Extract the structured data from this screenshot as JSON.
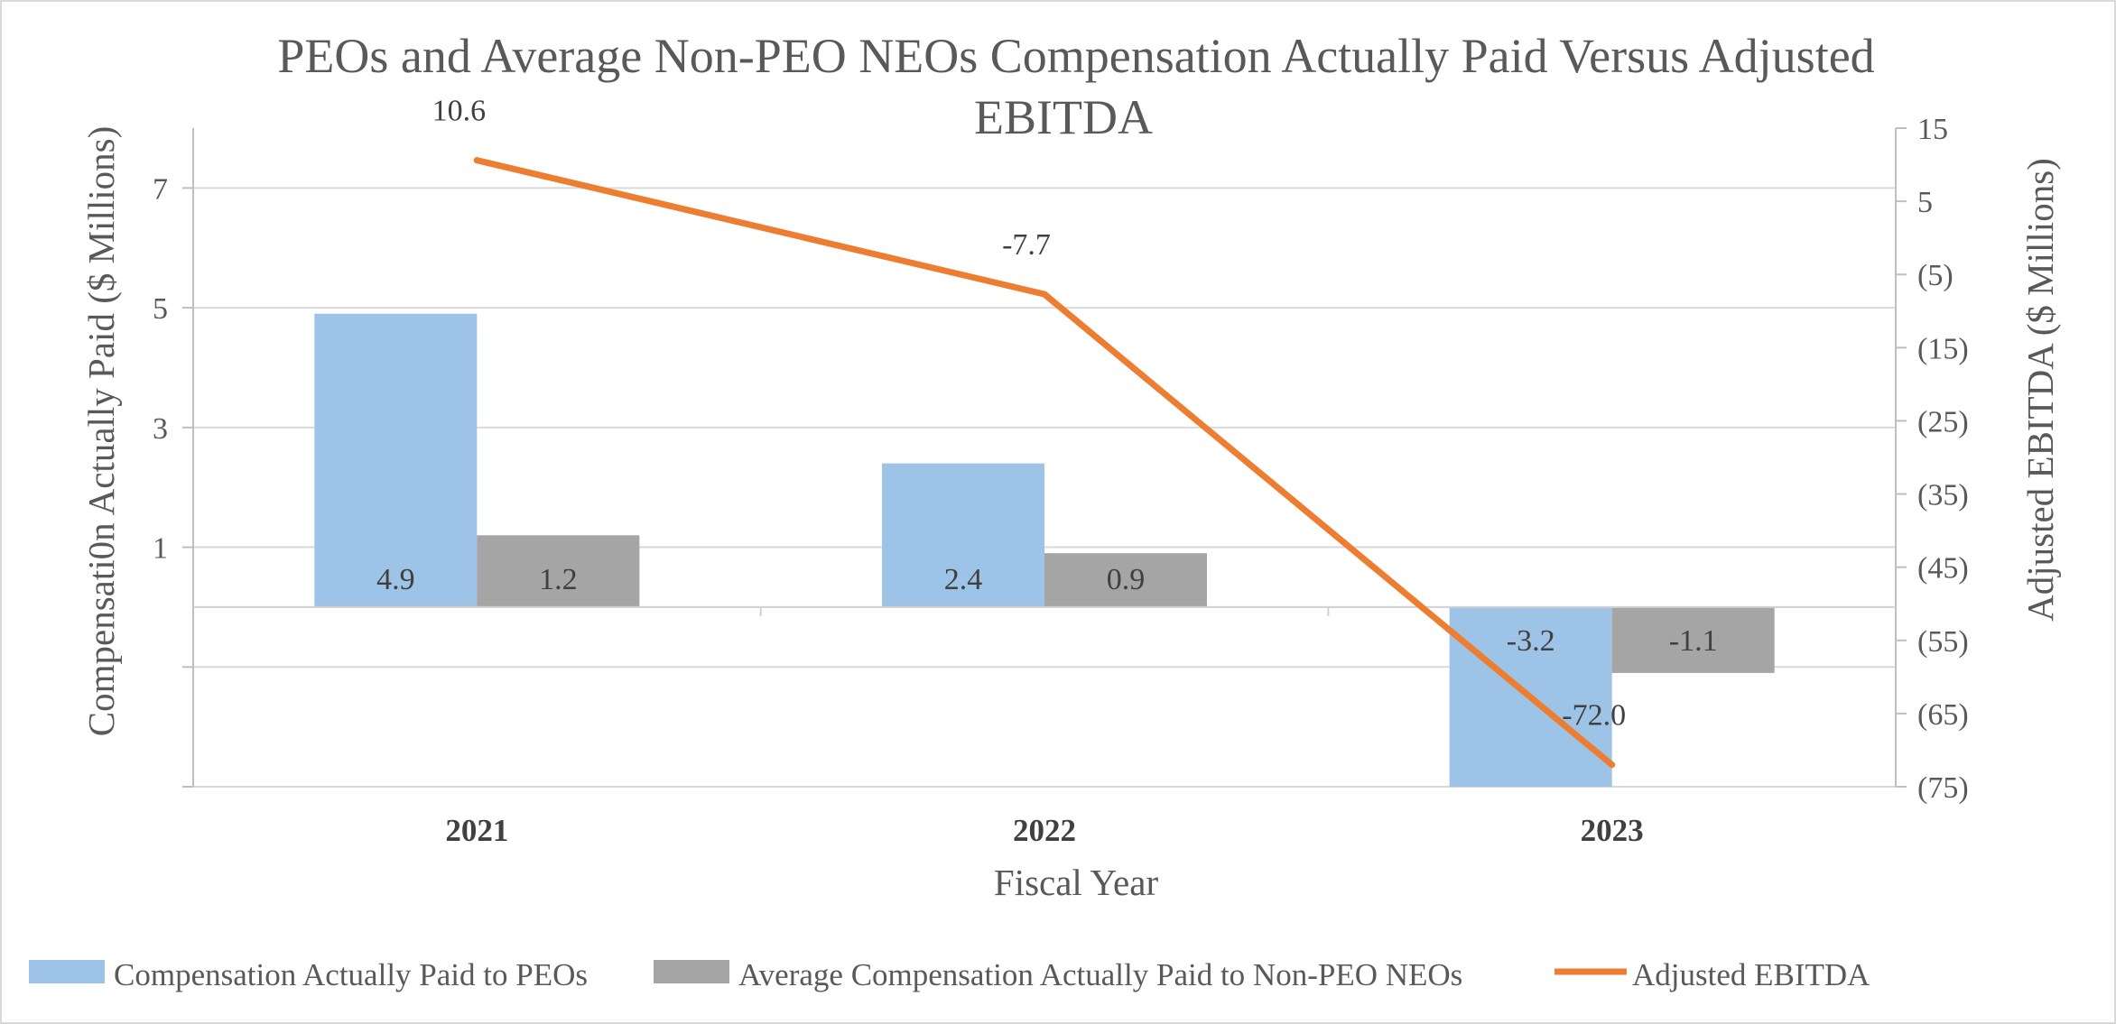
{
  "chart_data": {
    "type": "bar",
    "title": "PEOs and Average Non-PEO NEOs Compensation Actually Paid Versus Adjusted EBITDA",
    "title_lines": [
      "PEOs and Average Non-PEO NEOs Compensation Actually Paid Versus Adjusted",
      "EBITDA"
    ],
    "xlabel": "Fiscal Year",
    "ylabel": "Compensati0n Actually Paid ($ Millions)",
    "y2label": "Adjusted EBITDA ($ Millions)",
    "categories": [
      "2021",
      "2022",
      "2023"
    ],
    "ylim": [
      -3,
      8
    ],
    "yticks": [
      7,
      5,
      3,
      1
    ],
    "y2lim": [
      -75,
      15
    ],
    "y2ticks": [
      "15",
      "5",
      "(5)",
      "(15)",
      "(25)",
      "(35)",
      "(45)",
      "(55)",
      "(65)",
      "(75)"
    ],
    "y2tick_values": [
      15,
      5,
      -5,
      -15,
      -25,
      -35,
      -45,
      -55,
      -65,
      -75
    ],
    "grid": true,
    "legend_position": "bottom",
    "series": [
      {
        "name": "Compensation Actually Paid to PEOs",
        "kind": "bar",
        "axis": "left",
        "color": "#9dc3e6",
        "values": [
          4.9,
          2.4,
          -3.2
        ],
        "labels": [
          "4.9",
          "2.4",
          "-3.2"
        ]
      },
      {
        "name": "Average Compensation Actually Paid to Non-PEO NEOs",
        "kind": "bar",
        "axis": "left",
        "color": "#a5a5a5",
        "values": [
          1.2,
          0.9,
          -1.1
        ],
        "labels": [
          "1.2",
          "0.9",
          "-1.1"
        ]
      },
      {
        "name": "Adjusted EBITDA",
        "kind": "line",
        "axis": "right",
        "color": "#ed7d31",
        "values": [
          10.6,
          -7.7,
          -72.0
        ],
        "labels": [
          "10.6",
          "-7.7",
          "-72.0"
        ]
      }
    ]
  }
}
